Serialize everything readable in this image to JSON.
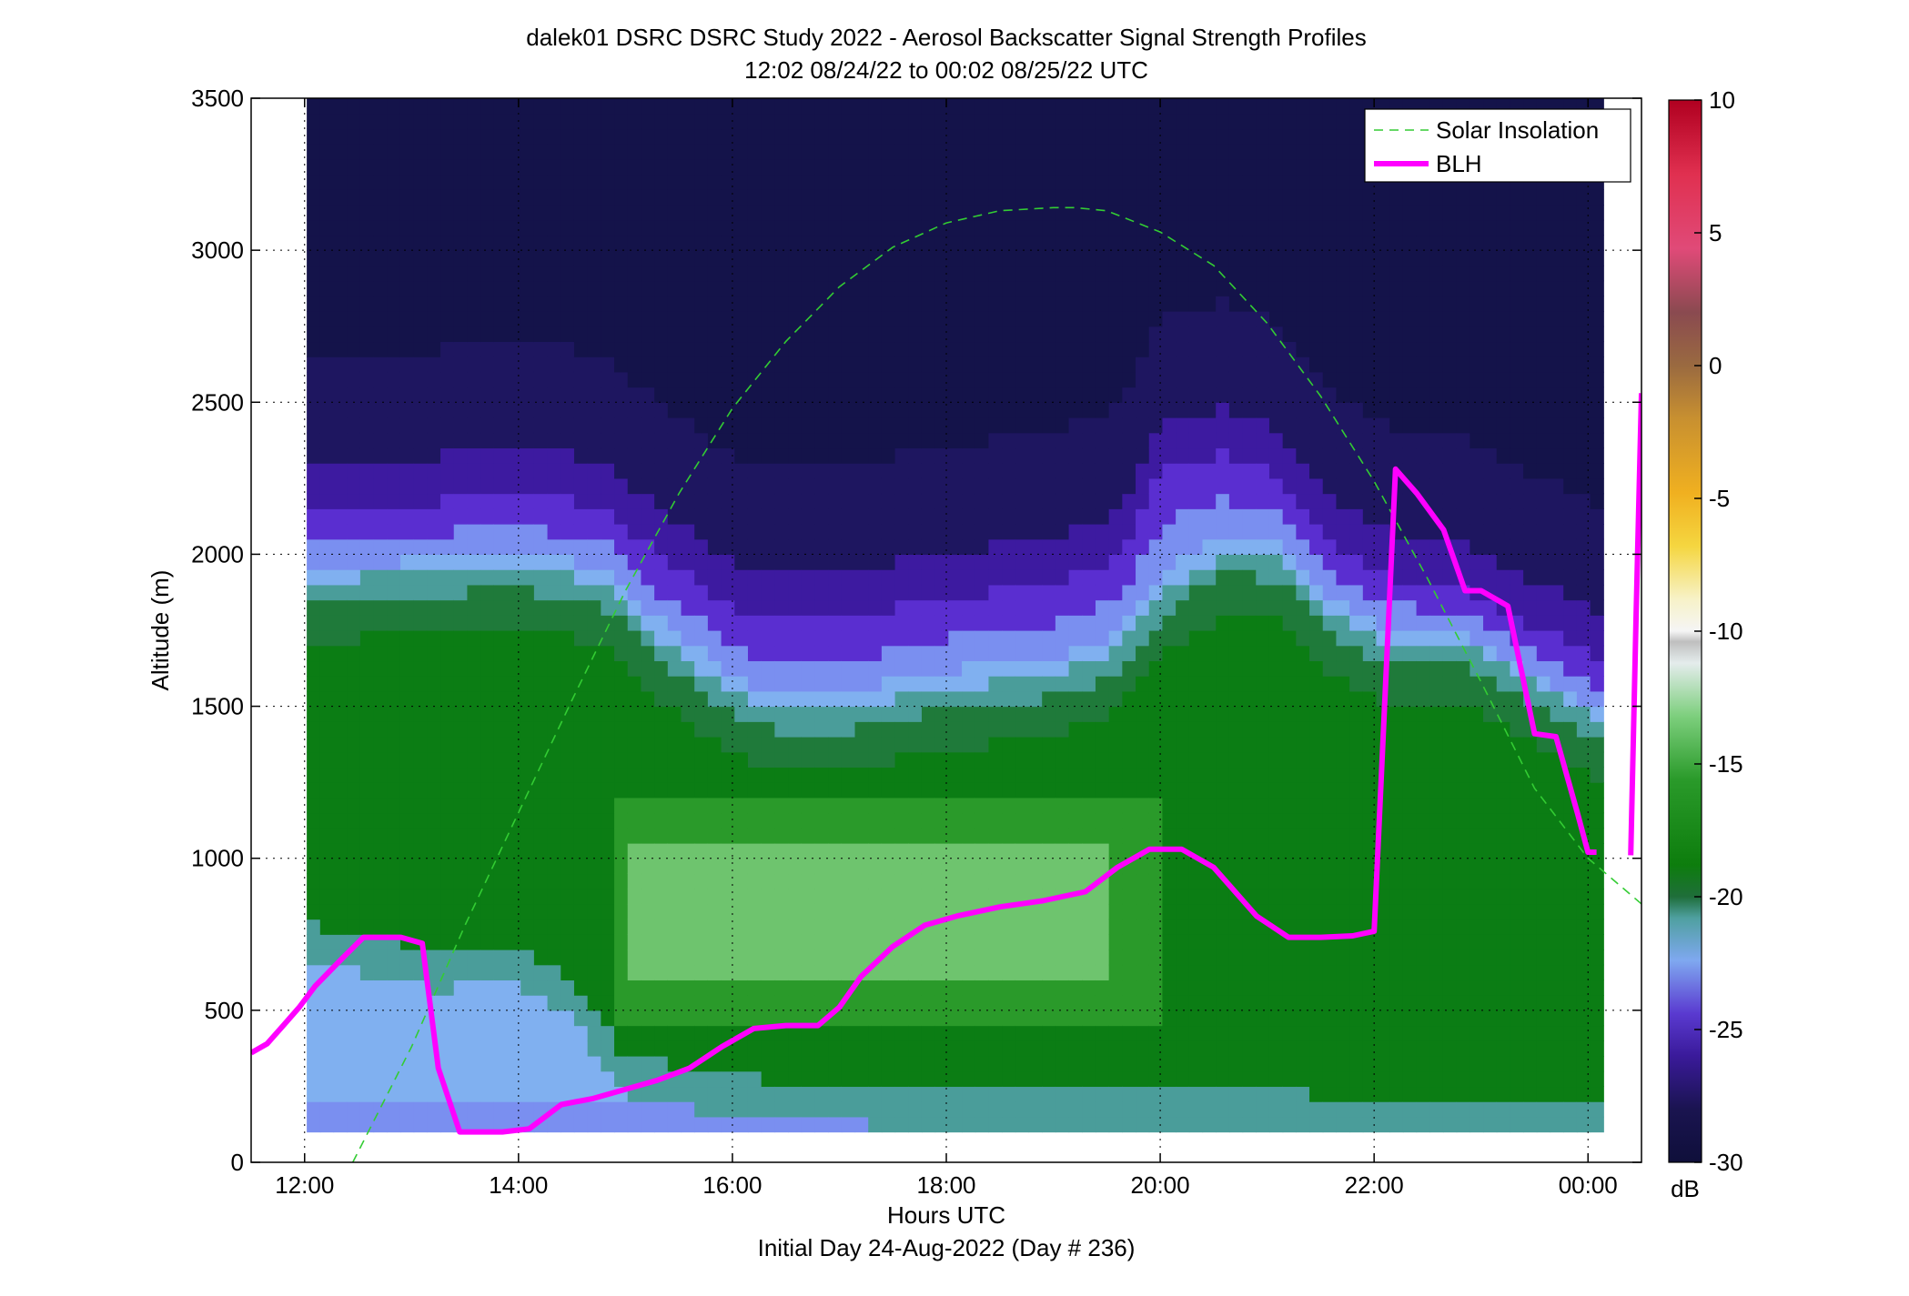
{
  "chart_data": {
    "type": "heatmap",
    "title_line1": "dalek01 DSRC DSRC Study 2022 - Aerosol Backscatter Signal Strength Profiles",
    "title_line2": "12:02 08/24/22 to 00:02 08/25/22  UTC",
    "xlabel": "Hours UTC",
    "xlabel_sub": "Initial Day 24-Aug-2022 (Day # 236)",
    "ylabel": "Altitude (m)",
    "xlim": [
      11.5,
      24.5
    ],
    "ylim": [
      0,
      3500
    ],
    "x_ticks": [
      12,
      14,
      16,
      18,
      20,
      22,
      24
    ],
    "x_tick_labels": [
      "12:00",
      "14:00",
      "16:00",
      "18:00",
      "20:00",
      "22:00",
      "00:00"
    ],
    "y_ticks": [
      0,
      500,
      1000,
      1500,
      2000,
      2500,
      3000,
      3500
    ],
    "y_tick_labels": [
      "0",
      "500",
      "1000",
      "1500",
      "2000",
      "2500",
      "3000",
      "3500"
    ],
    "grid": "dotted",
    "legend_position": "top-right",
    "legend": [
      {
        "label": "Solar Insolation",
        "color": "#33cc33",
        "style": "dashed"
      },
      {
        "label": "BLH",
        "color": "#ff00ff",
        "style": "solid-thick"
      }
    ],
    "colorbar": {
      "range": [
        -30,
        10
      ],
      "ticks": [
        10,
        5,
        0,
        -5,
        -10,
        -15,
        -20,
        -25,
        -30
      ],
      "tick_labels": [
        "10",
        "5",
        "0",
        "-5",
        "-10",
        "-15",
        "-20",
        "-25",
        "-30"
      ],
      "unit": "dB"
    },
    "heatmap_extent": {
      "x": [
        12.02,
        24.08
      ],
      "y": [
        100,
        3500
      ]
    },
    "solar_insolation": {
      "x": [
        12.45,
        13.0,
        13.5,
        14.0,
        14.5,
        15.0,
        15.5,
        16.0,
        16.5,
        17.0,
        17.5,
        18.0,
        18.5,
        19.0,
        19.2,
        19.5,
        20.0,
        20.5,
        21.0,
        21.5,
        22.0,
        22.5,
        23.0,
        23.5,
        24.0,
        24.5
      ],
      "y": [
        0,
        380,
        780,
        1150,
        1520,
        1880,
        2200,
        2480,
        2700,
        2880,
        3010,
        3090,
        3130,
        3140,
        3140,
        3130,
        3060,
        2950,
        2760,
        2520,
        2240,
        1920,
        1580,
        1230,
        1000,
        850
      ]
    },
    "blh_series": [
      {
        "x": [
          11.5,
          11.65,
          11.8,
          11.95,
          12.1,
          12.35,
          12.55,
          12.9,
          13.1,
          13.25,
          13.45,
          13.65,
          13.85,
          14.1,
          14.4,
          14.7,
          15.0,
          15.3,
          15.6,
          15.9,
          16.2,
          16.5,
          16.8,
          17.0,
          17.2,
          17.5,
          17.8,
          18.1,
          18.5,
          18.9,
          19.3,
          19.6,
          19.9,
          20.2,
          20.5,
          20.9,
          21.2,
          21.5,
          21.8,
          22.0,
          22.2,
          22.4,
          22.65,
          22.85,
          23.0,
          23.25,
          23.5,
          23.7,
          23.9,
          24.0,
          24.08
        ],
        "y": [
          360,
          390,
          450,
          510,
          580,
          670,
          740,
          740,
          720,
          310,
          100,
          100,
          100,
          110,
          190,
          210,
          240,
          270,
          310,
          380,
          440,
          450,
          450,
          510,
          610,
          710,
          780,
          810,
          840,
          860,
          890,
          970,
          1030,
          1030,
          970,
          810,
          740,
          740,
          745,
          760,
          2280,
          2200,
          2080,
          1880,
          1880,
          1830,
          1410,
          1400,
          1150,
          1020,
          1020
        ]
      },
      {
        "x": [
          24.4,
          24.45,
          24.5
        ],
        "y": [
          1010,
          1800,
          2530
        ]
      }
    ]
  }
}
